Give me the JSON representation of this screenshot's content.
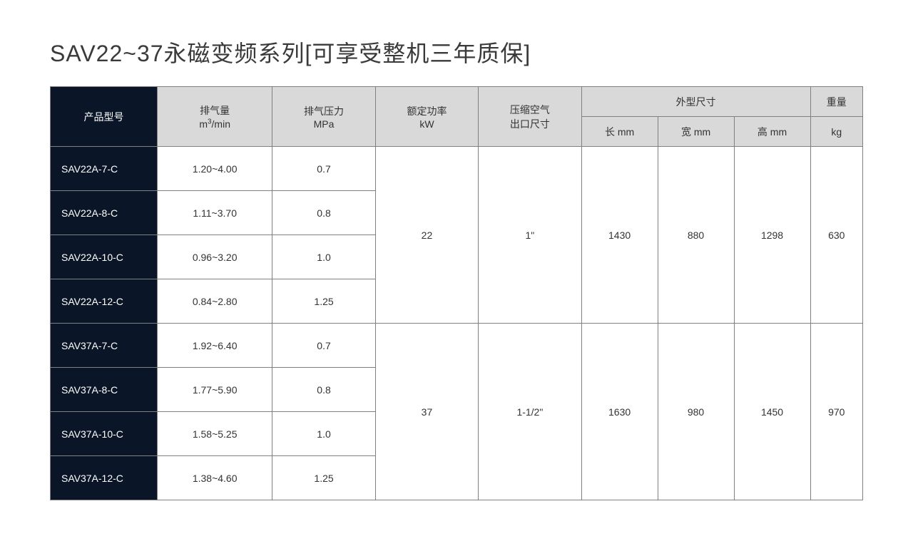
{
  "title": "SAV22~37永磁变频系列[可享受整机三年质保]",
  "headers": {
    "model": "产品型号",
    "airflow_line1": "排气量",
    "airflow_line2": "m³/min",
    "pressure_line1": "排气压力",
    "pressure_line2": "MPa",
    "power_line1": "额定功率",
    "power_line2": "kW",
    "outlet_line1": "压缩空气",
    "outlet_line2": "出口尺寸",
    "dimensions": "外型尺寸",
    "length": "长 mm",
    "width": "宽 mm",
    "height": "高 mm",
    "weight": "重量",
    "weight_unit": "kg"
  },
  "groups": [
    {
      "power": "22",
      "outlet": "1\"",
      "length": "1430",
      "width": "880",
      "height": "1298",
      "weight": "630",
      "rows": [
        {
          "model": "SAV22A-7-C",
          "airflow": "1.20~4.00",
          "pressure": "0.7"
        },
        {
          "model": "SAV22A-8-C",
          "airflow": "1.11~3.70",
          "pressure": "0.8"
        },
        {
          "model": "SAV22A-10-C",
          "airflow": "0.96~3.20",
          "pressure": "1.0"
        },
        {
          "model": "SAV22A-12-C",
          "airflow": "0.84~2.80",
          "pressure": "1.25"
        }
      ]
    },
    {
      "power": "37",
      "outlet": "1-1/2\"",
      "length": "1630",
      "width": "980",
      "height": "1450",
      "weight": "970",
      "rows": [
        {
          "model": "SAV37A-7-C",
          "airflow": "1.92~6.40",
          "pressure": "0.7"
        },
        {
          "model": "SAV37A-8-C",
          "airflow": "1.77~5.90",
          "pressure": "0.8"
        },
        {
          "model": "SAV37A-10-C",
          "airflow": "1.58~5.25",
          "pressure": "1.0"
        },
        {
          "model": "SAV37A-12-C",
          "airflow": "1.38~4.60",
          "pressure": "1.25"
        }
      ]
    }
  ],
  "colors": {
    "dark_bg": "#0a1628",
    "light_bg": "#d9d9d9",
    "white_bg": "#ffffff",
    "border": "#808080",
    "title_color": "#3a3a3a",
    "text_color": "#333333"
  }
}
